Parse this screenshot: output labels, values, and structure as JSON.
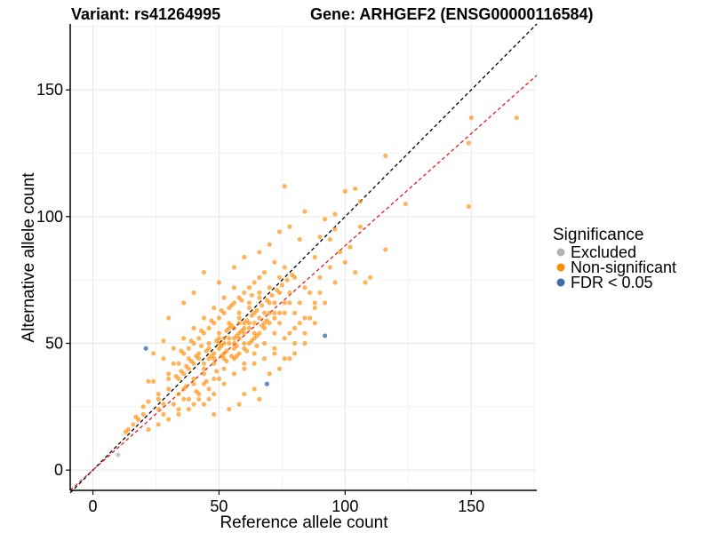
{
  "chart_data": {
    "type": "scatter",
    "title_left": "Variant: rs41264995",
    "title_right": "Gene: ARHGEF2 (ENSG00000116584)",
    "xlabel": "Reference allele count",
    "ylabel": "Alternative allele count",
    "xlim": [
      -9,
      176
    ],
    "ylim": [
      -8,
      176
    ],
    "xticks": [
      0,
      50,
      100,
      150
    ],
    "yticks": [
      0,
      50,
      100,
      150
    ],
    "grid": true,
    "reference_lines": [
      {
        "name": "identity",
        "slope": 1.0,
        "intercept": 0,
        "color": "#000000",
        "style": "dashed"
      },
      {
        "name": "fit",
        "slope": 0.885,
        "intercept": 0,
        "color": "#e41a1c",
        "style": "dashed"
      }
    ],
    "legend": {
      "title": "Significance",
      "position": "right",
      "entries": [
        {
          "label": "Excluded",
          "color": "#b3b3b3"
        },
        {
          "label": "Non-significant",
          "color": "#ff8c00"
        },
        {
          "label": "FDR < 0.05",
          "color": "#3f6ea6"
        }
      ]
    },
    "series": [
      {
        "name": "Excluded",
        "color": "#b3b3b3",
        "opacity": 0.7,
        "points": [
          [
            10,
            6
          ]
        ]
      },
      {
        "name": "FDR < 0.05",
        "color": "#3f6ea6",
        "opacity": 0.8,
        "points": [
          [
            21,
            48
          ],
          [
            69,
            34
          ],
          [
            92,
            53
          ]
        ]
      },
      {
        "name": "Non-significant",
        "color": "#ff8c00",
        "opacity": 0.65,
        "points": [
          [
            150,
            139
          ],
          [
            168,
            139
          ],
          [
            149,
            129
          ],
          [
            149,
            104
          ],
          [
            116,
            124
          ],
          [
            124,
            105
          ],
          [
            116,
            87
          ],
          [
            76,
            112
          ],
          [
            104,
            111
          ],
          [
            106,
            106
          ],
          [
            100,
            110
          ],
          [
            96,
            101
          ],
          [
            94,
            91
          ],
          [
            92,
            99
          ],
          [
            84,
            102
          ],
          [
            106,
            96
          ],
          [
            100,
            82
          ],
          [
            110,
            76
          ],
          [
            108,
            74
          ],
          [
            104,
            78
          ],
          [
            96,
            95
          ],
          [
            90,
            92
          ],
          [
            88,
            84
          ],
          [
            82,
            91
          ],
          [
            78,
            96
          ],
          [
            74,
            94
          ],
          [
            70,
            89
          ],
          [
            66,
            86
          ],
          [
            60,
            84
          ],
          [
            56,
            80
          ],
          [
            44,
            78
          ],
          [
            50,
            74
          ],
          [
            40,
            70
          ],
          [
            36,
            66
          ],
          [
            30,
            60
          ],
          [
            28,
            51
          ],
          [
            24,
            46
          ],
          [
            22,
            35
          ],
          [
            24,
            35
          ],
          [
            30,
            36
          ],
          [
            26,
            30
          ],
          [
            22,
            27
          ],
          [
            20,
            22
          ],
          [
            18,
            20
          ],
          [
            16,
            18
          ],
          [
            14,
            16
          ],
          [
            13,
            15
          ],
          [
            17,
            21
          ],
          [
            20,
            25
          ],
          [
            26,
            28
          ],
          [
            28,
            22
          ],
          [
            34,
            24
          ],
          [
            36,
            28
          ],
          [
            40,
            26
          ],
          [
            42,
            30
          ],
          [
            44,
            34
          ],
          [
            46,
            28
          ],
          [
            48,
            22
          ],
          [
            54,
            24
          ],
          [
            58,
            26
          ],
          [
            60,
            30
          ],
          [
            64,
            32
          ],
          [
            66,
            28
          ],
          [
            70,
            38
          ],
          [
            74,
            40
          ],
          [
            78,
            44
          ],
          [
            80,
            50
          ],
          [
            84,
            54
          ],
          [
            86,
            60
          ],
          [
            88,
            64
          ],
          [
            90,
            70
          ],
          [
            84,
            72
          ],
          [
            80,
            76
          ],
          [
            76,
            80
          ],
          [
            72,
            82
          ],
          [
            68,
            78
          ],
          [
            64,
            74
          ],
          [
            60,
            70
          ],
          [
            56,
            66
          ],
          [
            52,
            62
          ],
          [
            48,
            58
          ],
          [
            44,
            54
          ],
          [
            40,
            50
          ],
          [
            36,
            46
          ],
          [
            32,
            42
          ],
          [
            30,
            38
          ],
          [
            34,
            36
          ],
          [
            38,
            40
          ],
          [
            42,
            44
          ],
          [
            46,
            48
          ],
          [
            50,
            52
          ],
          [
            54,
            56
          ],
          [
            58,
            60
          ],
          [
            62,
            64
          ],
          [
            66,
            68
          ],
          [
            70,
            72
          ],
          [
            74,
            76
          ],
          [
            78,
            70
          ],
          [
            76,
            66
          ],
          [
            72,
            60
          ],
          [
            68,
            56
          ],
          [
            64,
            52
          ],
          [
            60,
            48
          ],
          [
            56,
            44
          ],
          [
            52,
            40
          ],
          [
            48,
            36
          ],
          [
            44,
            38
          ],
          [
            40,
            42
          ],
          [
            38,
            44
          ],
          [
            42,
            46
          ],
          [
            46,
            50
          ],
          [
            50,
            54
          ],
          [
            54,
            58
          ],
          [
            58,
            62
          ],
          [
            62,
            66
          ],
          [
            66,
            70
          ],
          [
            70,
            62
          ],
          [
            74,
            58
          ],
          [
            78,
            54
          ],
          [
            82,
            58
          ],
          [
            80,
            62
          ],
          [
            76,
            62
          ],
          [
            72,
            54
          ],
          [
            68,
            50
          ],
          [
            64,
            46
          ],
          [
            60,
            42
          ],
          [
            56,
            38
          ],
          [
            52,
            34
          ],
          [
            48,
            30
          ],
          [
            44,
            26
          ],
          [
            40,
            34
          ],
          [
            36,
            38
          ],
          [
            34,
            42
          ],
          [
            38,
            48
          ],
          [
            42,
            52
          ],
          [
            46,
            56
          ],
          [
            50,
            60
          ],
          [
            54,
            64
          ],
          [
            58,
            68
          ],
          [
            62,
            72
          ],
          [
            66,
            76
          ],
          [
            70,
            66
          ],
          [
            74,
            70
          ],
          [
            52,
            46
          ],
          [
            56,
            50
          ],
          [
            60,
            54
          ],
          [
            64,
            58
          ],
          [
            68,
            62
          ],
          [
            72,
            66
          ],
          [
            48,
            44
          ],
          [
            44,
            42
          ],
          [
            58,
            46
          ],
          [
            62,
            50
          ],
          [
            66,
            54
          ],
          [
            54,
            52
          ],
          [
            50,
            48
          ],
          [
            46,
            44
          ],
          [
            60,
            58
          ],
          [
            64,
            62
          ],
          [
            56,
            56
          ],
          [
            52,
            50
          ],
          [
            48,
            46
          ],
          [
            58,
            52
          ],
          [
            62,
            56
          ],
          [
            66,
            60
          ],
          [
            70,
            58
          ],
          [
            74,
            62
          ],
          [
            78,
            66
          ],
          [
            82,
            66
          ],
          [
            86,
            70
          ],
          [
            90,
            76
          ],
          [
            94,
            80
          ],
          [
            98,
            86
          ],
          [
            102,
            88
          ],
          [
            96,
            74
          ],
          [
            92,
            66
          ],
          [
            88,
            58
          ],
          [
            84,
            50
          ],
          [
            80,
            46
          ],
          [
            76,
            44
          ],
          [
            72,
            46
          ],
          [
            38,
            28
          ],
          [
            34,
            30
          ],
          [
            30,
            32
          ],
          [
            32,
            26
          ],
          [
            28,
            26
          ],
          [
            26,
            24
          ],
          [
            36,
            32
          ],
          [
            40,
            36
          ],
          [
            44,
            40
          ],
          [
            48,
            42
          ],
          [
            52,
            44
          ],
          [
            56,
            48
          ],
          [
            60,
            50
          ],
          [
            64,
            54
          ],
          [
            68,
            58
          ],
          [
            72,
            62
          ],
          [
            55,
            57
          ],
          [
            57,
            53
          ],
          [
            53,
            55
          ],
          [
            51,
            49
          ],
          [
            49,
            51
          ],
          [
            59,
            55
          ],
          [
            61,
            59
          ],
          [
            63,
            61
          ],
          [
            45,
            47
          ],
          [
            47,
            45
          ],
          [
            43,
            49
          ],
          [
            41,
            45
          ],
          [
            39,
            43
          ],
          [
            37,
            41
          ],
          [
            35,
            39
          ],
          [
            33,
            37
          ],
          [
            65,
            63
          ],
          [
            67,
            65
          ],
          [
            69,
            67
          ],
          [
            71,
            69
          ],
          [
            73,
            71
          ],
          [
            75,
            73
          ],
          [
            77,
            75
          ],
          [
            79,
            77
          ],
          [
            56,
            72
          ],
          [
            52,
            68
          ],
          [
            48,
            64
          ],
          [
            44,
            60
          ],
          [
            40,
            56
          ],
          [
            36,
            52
          ],
          [
            32,
            48
          ],
          [
            28,
            44
          ],
          [
            60,
            40
          ],
          [
            64,
            42
          ],
          [
            68,
            44
          ],
          [
            72,
            48
          ],
          [
            76,
            52
          ],
          [
            80,
            56
          ],
          [
            84,
            60
          ],
          [
            88,
            66
          ],
          [
            50,
            36
          ],
          [
            46,
            32
          ],
          [
            42,
            28
          ],
          [
            38,
            24
          ],
          [
            34,
            22
          ],
          [
            30,
            20
          ],
          [
            26,
            18
          ],
          [
            22,
            16
          ],
          [
            57,
            45
          ],
          [
            61,
            47
          ],
          [
            65,
            49
          ],
          [
            53,
            43
          ],
          [
            49,
            39
          ],
          [
            45,
            35
          ],
          [
            41,
            31
          ],
          [
            37,
            33
          ],
          [
            55,
            65
          ],
          [
            59,
            67
          ],
          [
            63,
            69
          ],
          [
            51,
            63
          ],
          [
            47,
            59
          ],
          [
            43,
            55
          ],
          [
            39,
            51
          ],
          [
            35,
            47
          ],
          [
            54,
            50
          ],
          [
            56,
            52
          ],
          [
            58,
            54
          ],
          [
            60,
            56
          ],
          [
            62,
            58
          ],
          [
            50,
            50
          ],
          [
            52,
            52
          ],
          [
            58,
            58
          ],
          [
            55,
            45
          ],
          [
            57,
            49
          ],
          [
            53,
            47
          ],
          [
            51,
            45
          ],
          [
            63,
            51
          ],
          [
            65,
            53
          ],
          [
            67,
            57
          ],
          [
            69,
            59
          ]
        ]
      }
    ]
  }
}
